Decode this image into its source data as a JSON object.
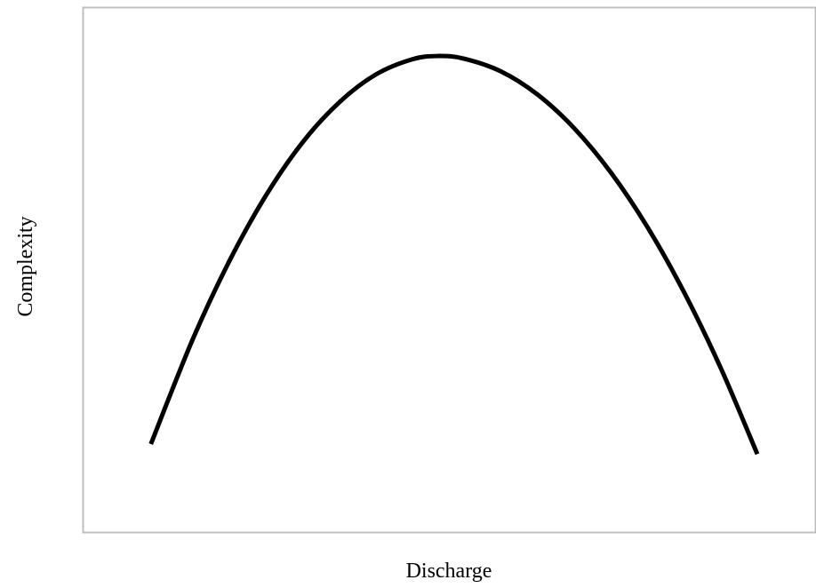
{
  "chart_data": {
    "type": "line",
    "x_label": "Discharge",
    "y_label": "Complexity",
    "xlim": [
      0,
      100
    ],
    "ylim": [
      0,
      100
    ],
    "x": [
      9.3,
      15,
      20,
      25,
      30,
      35,
      40,
      45,
      48.5,
      52,
      57,
      62,
      67,
      72,
      77,
      82,
      87,
      92
    ],
    "series": [
      {
        "color": "#000000",
        "values": [
          16.9,
          36.8,
          51.7,
          64.2,
          74.3,
          81.9,
          87.2,
          90.1,
          90.7,
          90.2,
          87.8,
          83.4,
          77.0,
          68.6,
          58.2,
          45.8,
          31.4,
          15.0
        ]
      }
    ]
  }
}
